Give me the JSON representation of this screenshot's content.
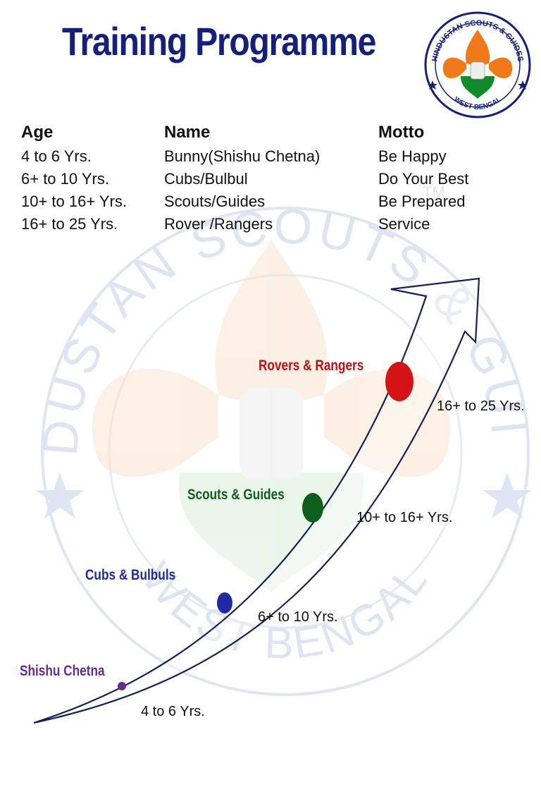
{
  "title": "Training Programme",
  "logo": {
    "ring_text": "HINDUSTAN SCOUTS & GUIDES",
    "bottom_text": "WEST BENGAL",
    "colors": {
      "saffron": "#f07a1a",
      "green": "#138a2a",
      "navy": "#14207a"
    }
  },
  "table": {
    "headers": {
      "age": "Age",
      "name": "Name",
      "motto": "Motto"
    },
    "rows": [
      {
        "age": "4 to 6 Yrs.",
        "name": "Bunny(Shishu Chetna)",
        "motto": "Be Happy"
      },
      {
        "age": "6+ to 10 Yrs.",
        "name": "Cubs/Bulbul",
        "motto": "Do Your Best"
      },
      {
        "age": "10+ to 16+ Yrs.",
        "name": "Scouts/Guides",
        "motto": "Be Prepared"
      },
      {
        "age": "16+ to 25 Yrs.",
        "name": "Rover /Rangers",
        "motto": "Service"
      }
    ]
  },
  "watermark": {
    "ring_text": "HINDUSTAN SCOUTS & GUIDES",
    "bottom_text": "WEST BENGAL",
    "tm": "TM"
  },
  "stages": [
    {
      "label": "Shishu Chetna",
      "age": "4 to 6 Yrs.",
      "color": "#6a2a8e"
    },
    {
      "label": "Cubs & Bulbuls",
      "age": "6+ to 10 Yrs.",
      "color": "#1e2aa0"
    },
    {
      "label": "Scouts & Guides",
      "age": "10+ to 16+ Yrs.",
      "color": "#0e5e1e"
    },
    {
      "label": "Rovers & Rangers",
      "age": "16+ to 25 Yrs.",
      "color": "#d41414"
    }
  ]
}
